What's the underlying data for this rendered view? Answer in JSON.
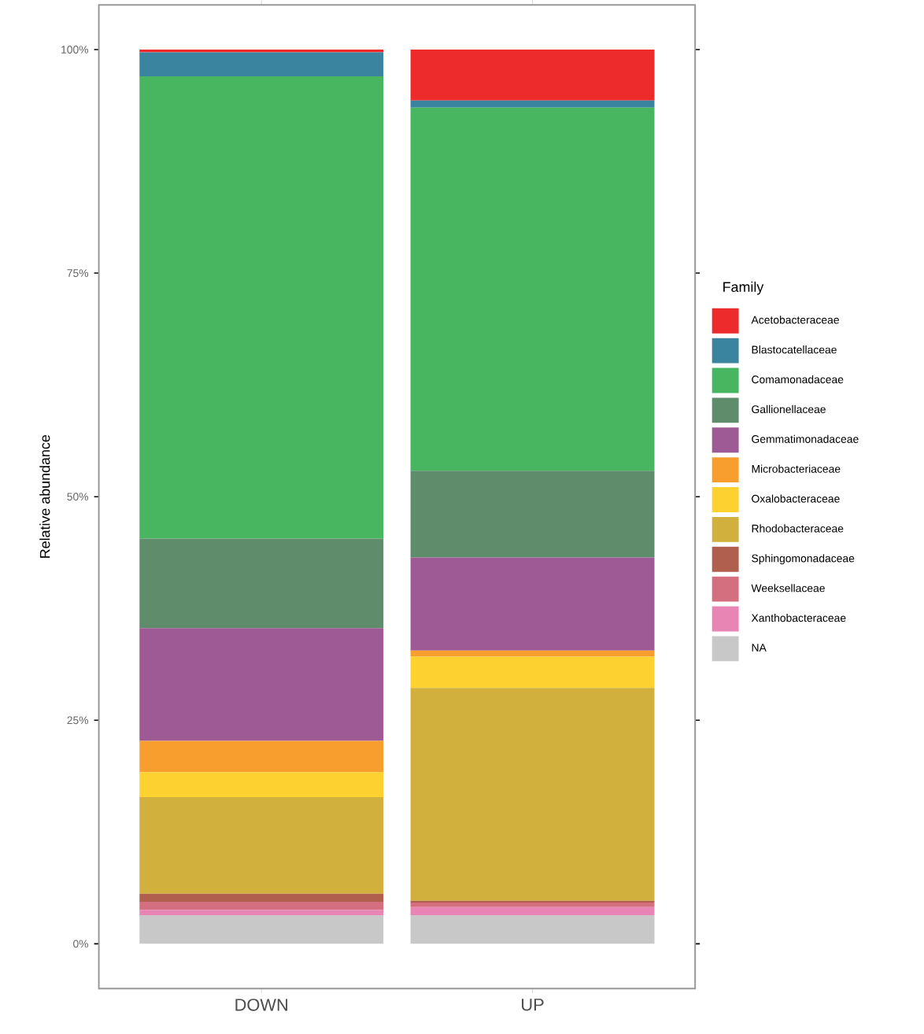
{
  "chart_data": {
    "type": "bar",
    "stacked": true,
    "ylabel": "Relative abundance",
    "legend_title": "Family",
    "legend": "right",
    "categories": [
      "DOWN",
      "UP"
    ],
    "ylim": [
      -5,
      105
    ],
    "yticks": [
      {
        "value": 0,
        "label": "0%"
      },
      {
        "value": 25,
        "label": "25%"
      },
      {
        "value": 50,
        "label": "50%"
      },
      {
        "value": 75,
        "label": "75%"
      },
      {
        "value": 100,
        "label": "100%"
      }
    ],
    "series": [
      {
        "name": "NA",
        "color": "#c8c8c8",
        "values": [
          3.2,
          3.2
        ]
      },
      {
        "name": "Xanthobacteraceae",
        "color": "#e985b5",
        "values": [
          0.6,
          0.9
        ]
      },
      {
        "name": "Weeksellaceae",
        "color": "#d46f80",
        "values": [
          0.9,
          0.5
        ]
      },
      {
        "name": "Sphingomonadaceae",
        "color": "#b05f4e",
        "values": [
          0.9,
          0.2
        ]
      },
      {
        "name": "Rhodobacteraceae",
        "color": "#d1b03d",
        "values": [
          10.8,
          23.8
        ]
      },
      {
        "name": "Oxalobacteraceae",
        "color": "#fdd230",
        "values": [
          2.8,
          3.5
        ]
      },
      {
        "name": "Microbacteriaceae",
        "color": "#f89e2f",
        "values": [
          3.5,
          0.7
        ]
      },
      {
        "name": "Gemmatimonadaceae",
        "color": "#9e5a95",
        "values": [
          12.6,
          10.4
        ]
      },
      {
        "name": "Gallionellaceae",
        "color": "#5f8c6b",
        "values": [
          10.0,
          9.7
        ]
      },
      {
        "name": "Comamonadaceae",
        "color": "#48b560",
        "values": [
          51.7,
          40.6
        ]
      },
      {
        "name": "Blastocatellaceae",
        "color": "#3b849f",
        "values": [
          2.7,
          0.8
        ]
      },
      {
        "name": "Acetobacteraceae",
        "color": "#ed2a2c",
        "values": [
          0.3,
          5.7
        ]
      }
    ]
  }
}
